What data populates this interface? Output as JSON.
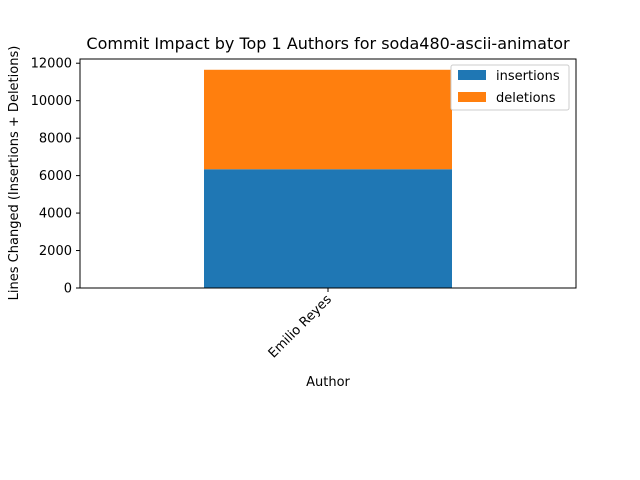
{
  "chart_data": {
    "type": "bar",
    "stacked": true,
    "title": "Commit Impact by Top 1 Authors for soda480-ascii-animator",
    "xlabel": "Author",
    "ylabel": "Lines Changed (Insertions + Deletions)",
    "categories": [
      "Emilio Reyes"
    ],
    "series": [
      {
        "name": "insertions",
        "values": [
          6340
        ],
        "color": "#1f77b4"
      },
      {
        "name": "deletions",
        "values": [
          5310
        ],
        "color": "#ff7f0e"
      }
    ],
    "ylim": [
      0,
      12225
    ],
    "yticks": [
      0,
      2000,
      4000,
      6000,
      8000,
      10000,
      12000
    ],
    "grid": false,
    "legend_position": "top-right"
  }
}
